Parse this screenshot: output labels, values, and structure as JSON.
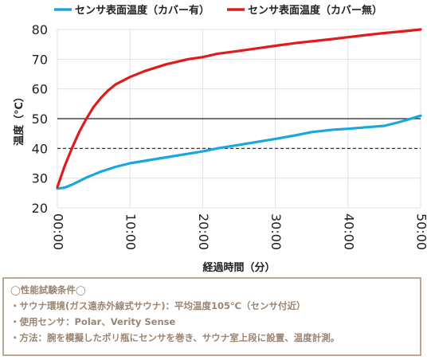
{
  "chart_data": {
    "type": "line",
    "xlabel": "経過時間（分）",
    "ylabel": "温度（℃）",
    "x_ticks": [
      "00:00",
      "10:00",
      "20:00",
      "30:00",
      "40:00",
      "50:00"
    ],
    "x_tick_minutes": [
      0,
      10,
      20,
      30,
      40,
      50
    ],
    "xlim": [
      0,
      50
    ],
    "y_ticks": [
      20,
      30,
      40,
      50,
      60,
      70,
      80
    ],
    "ylim": [
      20,
      80
    ],
    "reference_lines": [
      {
        "y": 50,
        "style": "solid"
      },
      {
        "y": 40,
        "style": "dashed"
      }
    ],
    "legend_position": "top",
    "series": [
      {
        "name": "センサ表面温度（カバー有）",
        "color": "#1aa7e0",
        "x": [
          0,
          1,
          2,
          3,
          4,
          5,
          6,
          8,
          10,
          12,
          15,
          18,
          20,
          22,
          25,
          28,
          30,
          33,
          35,
          38,
          40,
          42,
          45,
          47,
          50
        ],
        "y": [
          26.5,
          26.8,
          27.8,
          29,
          30.2,
          31.2,
          32.2,
          33.8,
          35,
          35.8,
          37,
          38.2,
          39,
          40,
          41.2,
          42.4,
          43.2,
          44.5,
          45.5,
          46.3,
          46.6,
          47,
          47.6,
          48.8,
          51
        ]
      },
      {
        "name": "センサ表面温度（カバー無）",
        "color": "#e01b1b",
        "x": [
          0,
          1,
          2,
          3,
          4,
          5,
          6,
          7,
          8,
          10,
          12,
          15,
          18,
          20,
          22,
          25,
          28,
          30,
          33,
          35,
          38,
          40,
          42,
          45,
          48,
          50
        ],
        "y": [
          27,
          34,
          40,
          45.5,
          50,
          54,
          57,
          59.5,
          61.5,
          64,
          66,
          68.3,
          70,
          70.7,
          71.8,
          72.8,
          73.8,
          74.5,
          75.5,
          76,
          76.8,
          77.4,
          78,
          78.8,
          79.5,
          80
        ]
      }
    ]
  },
  "conditions": {
    "title": "◯性能試験条件◯",
    "lines": [
      "・サウナ環境(ガス遠赤外線式サウナ)：平均温度105℃（センサ付近）",
      "・使用センサ：Polar、Verity Sense",
      "・方法：腕を模擬したポリ瓶にセンサを巻き、サウナ室上段に設置、温度計測。"
    ]
  }
}
